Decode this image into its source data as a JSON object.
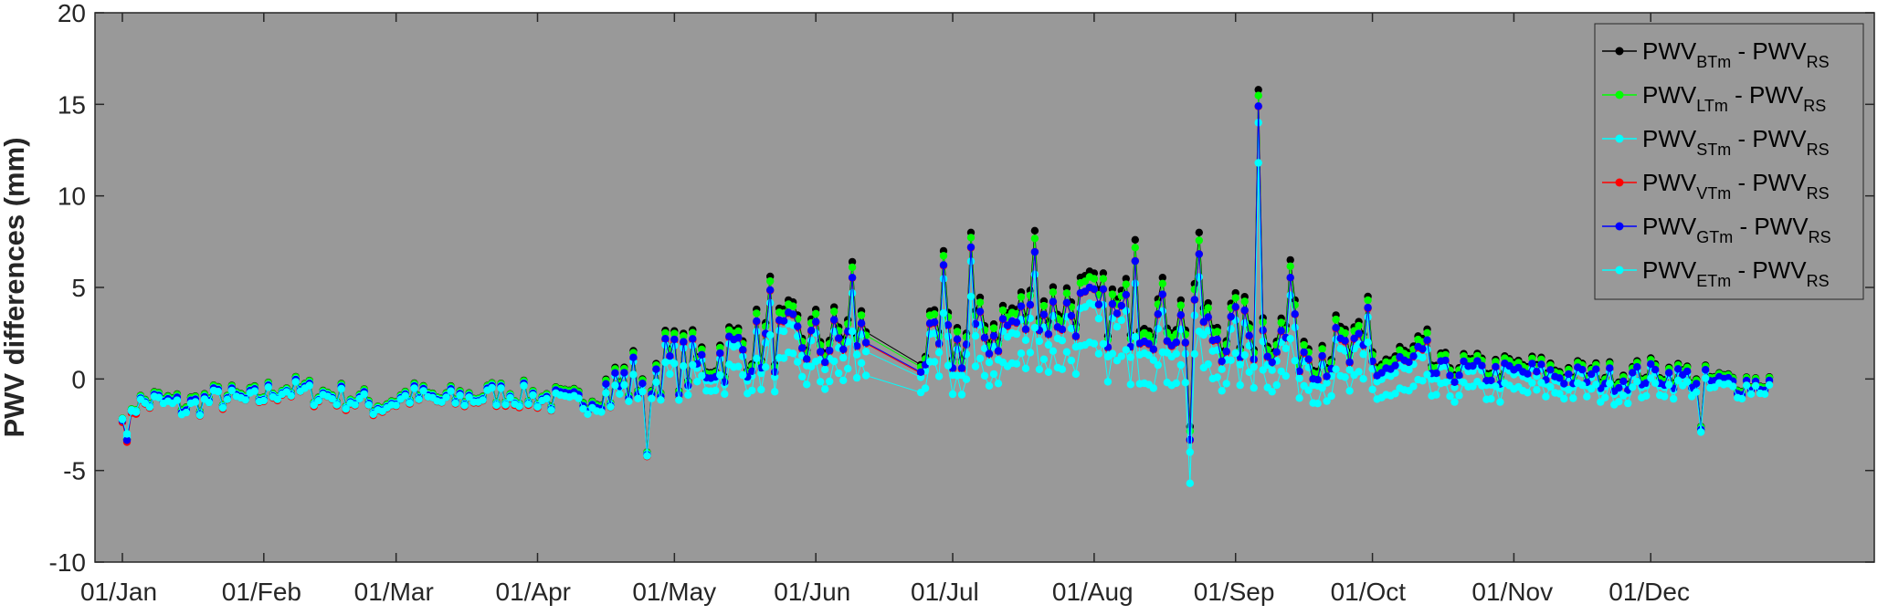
{
  "chart_data": {
    "type": "line",
    "title": "",
    "xlabel": "",
    "ylabel": "PWV differences (mm)",
    "ylim": [
      -10,
      20
    ],
    "xlim": [
      "2019-12-26",
      "2021-01-19"
    ],
    "yticks": [
      "-10",
      "-5",
      "0",
      "5",
      "10",
      "15",
      "20"
    ],
    "xticks": [
      "01/Jan",
      "01/Feb",
      "01/Mar",
      "01/Apr",
      "01/May",
      "01/Jun",
      "01/Jul",
      "01/Aug",
      "01/Sep",
      "01/Oct",
      "01/Nov",
      "01/Dec"
    ],
    "background_color": "#999999",
    "grid": false,
    "legend_location": "top-right",
    "series": [
      {
        "name": "PWV_BTm - PWV_RS",
        "label_main": "PWV",
        "label_sub1": "BTm",
        "label_mid": " - PWV",
        "label_sub2": "RS",
        "color": "#000000"
      },
      {
        "name": "PWV_LTm - PWV_RS",
        "label_main": "PWV",
        "label_sub1": "LTm",
        "label_mid": " - PWV",
        "label_sub2": "RS",
        "color": "#00ff00"
      },
      {
        "name": "PWV_STm - PWV_RS",
        "label_main": "PWV",
        "label_sub1": "STm",
        "label_mid": " - PWV",
        "label_sub2": "RS",
        "color": "#00ffff"
      },
      {
        "name": "PWV_VTm - PWV_RS",
        "label_main": "PWV",
        "label_sub1": "VTm",
        "label_mid": " - PWV",
        "label_sub2": "RS",
        "color": "#ff0000"
      },
      {
        "name": "PWV_GTm - PWV_RS",
        "label_main": "PWV",
        "label_sub1": "GTm",
        "label_mid": " - PWV",
        "label_sub2": "RS",
        "color": "#0000ff"
      },
      {
        "name": "PWV_ETm - PWV_RS",
        "label_main": "PWV",
        "label_sub1": "ETm",
        "label_mid": " - PWV",
        "label_sub2": "RS",
        "color": "#00ffff"
      }
    ],
    "profile": {
      "dates": [
        "2020-01-01",
        "2020-01-08",
        "2020-01-15",
        "2020-01-22",
        "2020-01-29",
        "2020-02-05",
        "2020-02-12",
        "2020-02-19",
        "2020-02-26",
        "2020-03-04",
        "2020-03-11",
        "2020-03-18",
        "2020-03-25",
        "2020-04-01",
        "2020-04-08",
        "2020-04-15",
        "2020-04-22",
        "2020-04-29",
        "2020-05-06",
        "2020-05-13",
        "2020-05-20",
        "2020-05-27",
        "2020-06-03",
        "2020-06-10",
        "2020-06-17",
        "2020-06-24",
        "2020-07-01",
        "2020-07-08",
        "2020-07-15",
        "2020-07-22",
        "2020-07-29",
        "2020-08-05",
        "2020-08-12",
        "2020-08-19",
        "2020-08-26",
        "2020-09-02",
        "2020-09-09",
        "2020-09-16",
        "2020-09-23",
        "2020-09-30",
        "2020-10-07",
        "2020-10-14",
        "2020-10-21",
        "2020-10-28",
        "2020-11-04",
        "2020-11-11",
        "2020-11-18",
        "2020-11-25",
        "2020-12-02",
        "2020-12-09",
        "2020-12-16",
        "2020-12-23",
        "2020-12-27"
      ],
      "btm": [
        -1.6,
        -1.2,
        -1.5,
        -1.0,
        -1.2,
        -0.5,
        -0.8,
        -1.0,
        -1.5,
        -0.9,
        -1.2,
        -1.0,
        -0.8,
        -1.0,
        -1.3,
        -0.9,
        -0.2,
        0.8,
        0.6,
        1.5,
        2.0,
        2.2,
        2.0,
        2.6,
        2.2,
        1.5,
        1.8,
        2.6,
        3.4,
        3.8,
        4.2,
        3.6,
        3.8,
        3.4,
        2.8,
        2.6,
        2.6,
        2.0,
        1.6,
        0.9,
        0.6,
        0.6,
        0.7,
        0.5,
        0.6,
        0.4,
        0.2,
        0.2,
        0.4,
        0.2,
        -0.2,
        -0.2,
        -0.2
      ],
      "etm": [
        -1.7,
        -1.4,
        -1.8,
        -1.2,
        -1.4,
        -0.7,
        -1.0,
        -1.2,
        -1.7,
        -1.1,
        -1.4,
        -1.2,
        -1.0,
        -1.2,
        -1.6,
        -1.3,
        -0.8,
        -0.2,
        -0.5,
        0.0,
        0.0,
        0.2,
        -0.2,
        0.2,
        0.0,
        -0.3,
        -0.4,
        0.0,
        0.6,
        0.8,
        1.0,
        0.6,
        0.4,
        0.2,
        0.0,
        0.2,
        0.0,
        -0.4,
        -0.6,
        -0.9,
        -1.2,
        -1.0,
        -0.8,
        -0.9,
        -0.8,
        -0.8,
        -0.9,
        -0.9,
        -0.6,
        -0.6,
        -0.7,
        -0.6,
        -0.6
      ]
    },
    "spikes": [
      {
        "date": "2020-01-02",
        "btm": -3.3,
        "etm": -3.0
      },
      {
        "date": "2020-04-25",
        "btm": -4.0,
        "etm": -4.2
      },
      {
        "date": "2020-05-22",
        "btm": 5.6,
        "etm": 2.4
      },
      {
        "date": "2020-06-09",
        "btm": 6.4,
        "etm": 2.6
      },
      {
        "date": "2020-06-29",
        "btm": 7.0,
        "etm": 3.6
      },
      {
        "date": "2020-07-05",
        "btm": 8.0,
        "etm": 4.5
      },
      {
        "date": "2020-07-19",
        "btm": 8.1,
        "etm": 2.8
      },
      {
        "date": "2020-08-10",
        "btm": 7.6,
        "etm": 2.3
      },
      {
        "date": "2020-08-22",
        "btm": -2.6,
        "etm": -5.7
      },
      {
        "date": "2020-08-24",
        "btm": 8.0,
        "etm": 2.6
      },
      {
        "date": "2020-09-06",
        "btm": 15.8,
        "etm": 11.8
      },
      {
        "date": "2020-09-13",
        "btm": 6.5,
        "etm": 2.2
      },
      {
        "date": "2020-09-30",
        "btm": 4.5,
        "etm": 2.0
      },
      {
        "date": "2020-12-12",
        "btm": -2.6,
        "etm": -2.9
      }
    ]
  }
}
